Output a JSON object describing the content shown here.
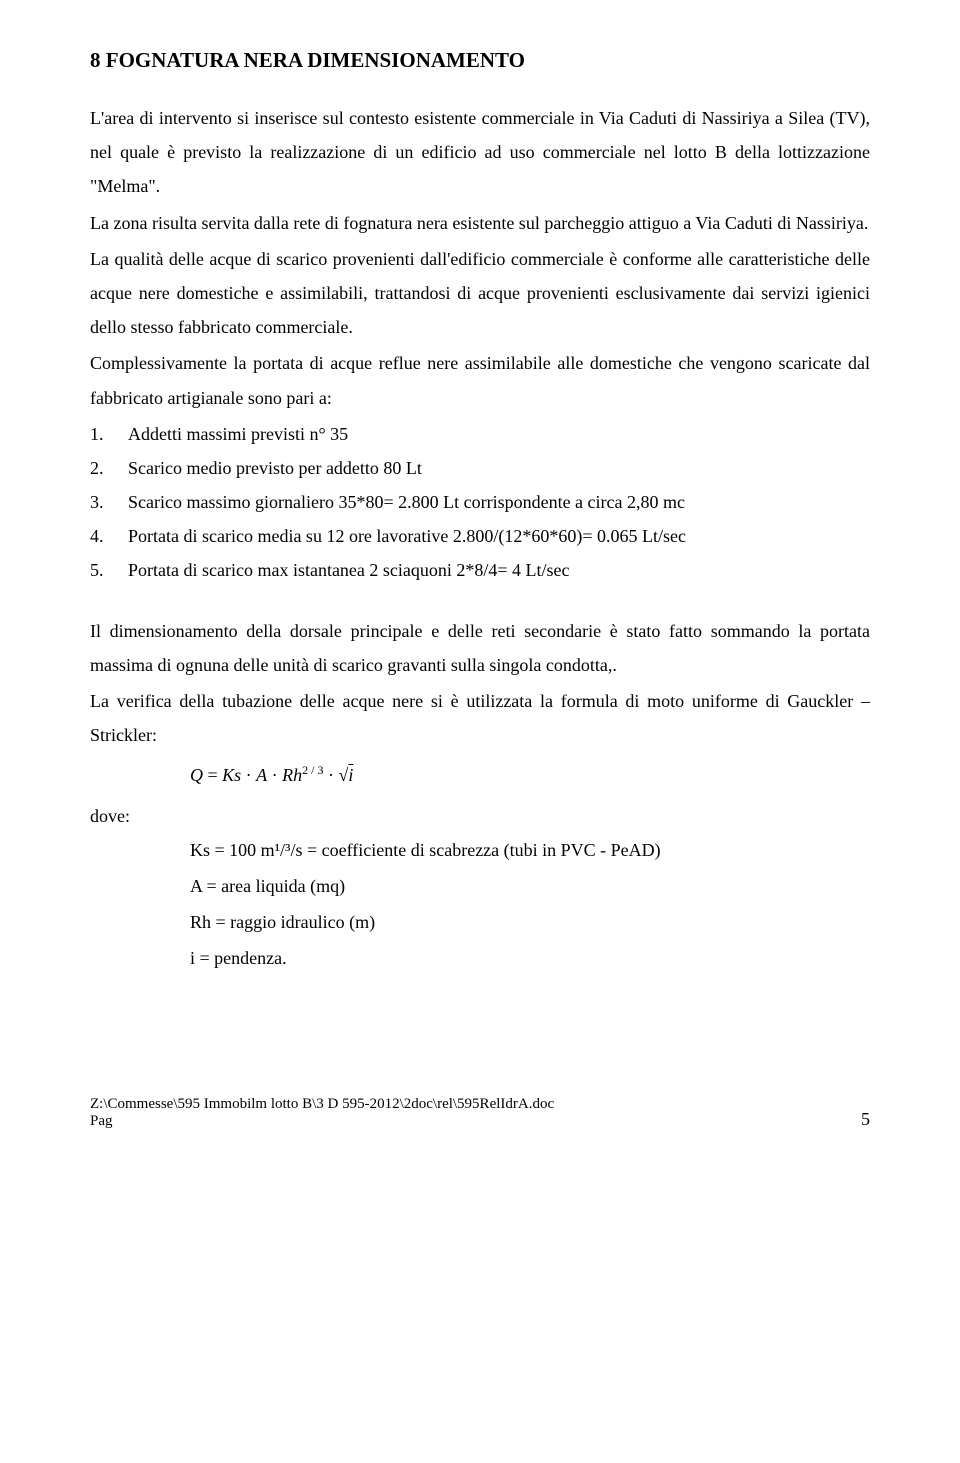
{
  "heading": "8 FOGNATURA NERA  DIMENSIONAMENTO",
  "para1": "L'area di intervento si inserisce sul contesto esistente commerciale in Via Caduti di Nassiriya a Silea (TV), nel quale è previsto la  realizzazione di un edificio ad uso commerciale nel lotto B della lottizzazione \"Melma\".",
  "para2": "La zona risulta servita dalla rete di fognatura nera esistente sul parcheggio attiguo a Via Caduti di Nassiriya.",
  "para3": "La qualità delle acque di scarico provenienti dall'edificio commerciale è conforme alle caratteristiche delle acque nere domestiche e assimilabili, trattandosi di acque provenienti esclusivamente dai servizi igienici dello stesso fabbricato commerciale.",
  "para4": "Complessivamente la portata di acque reflue nere assimilabile alle domestiche che vengono scaricate dal fabbricato artigianale sono pari a:",
  "list": [
    {
      "num": "1.",
      "text": "Addetti massimi previsti n° 35"
    },
    {
      "num": "2.",
      "text": "Scarico medio previsto per addetto 80 Lt"
    },
    {
      "num": "3.",
      "text": "Scarico massimo giornaliero 35*80= 2.800 Lt corrispondente a circa 2,80 mc"
    },
    {
      "num": "4.",
      "text": "Portata di scarico media su 12 ore lavorative 2.800/(12*60*60)= 0.065 Lt/sec"
    },
    {
      "num": "5.",
      "text": "Portata di scarico max istantanea 2 sciaquoni 2*8/4= 4 Lt/sec"
    }
  ],
  "para5": "Il dimensionamento della dorsale principale e delle reti secondarie è stato fatto sommando la portata massima di ognuna delle unità di scarico gravanti sulla singola condotta,.",
  "para6": "La verifica della tubazione delle acque nere si è utilizzata la formula di moto uniforme di Gauckler – Strickler:",
  "formula": {
    "Q": "Q",
    "eq": " = ",
    "Ks": "Ks",
    "dot1": " · ",
    "A": "A",
    "dot2": " · ",
    "Rh": "Rh",
    "exp": "2 / 3",
    "dot3": " · ",
    "sqrt": "√",
    "i": "i"
  },
  "dove_label": "dove:",
  "defs": [
    "Ks = 100 m¹/³/s = coefficiente di scabrezza (tubi in PVC - PeAD)",
    "A = area liquida (mq)",
    "Rh = raggio idraulico (m)",
    "i = pendenza."
  ],
  "footer_path": "Z:\\Commesse\\595 Immobilm lotto B\\3 D 595-2012\\2doc\\rel\\595RelIdrA.doc",
  "footer_pag_label": "Pag",
  "footer_page_number": "5"
}
